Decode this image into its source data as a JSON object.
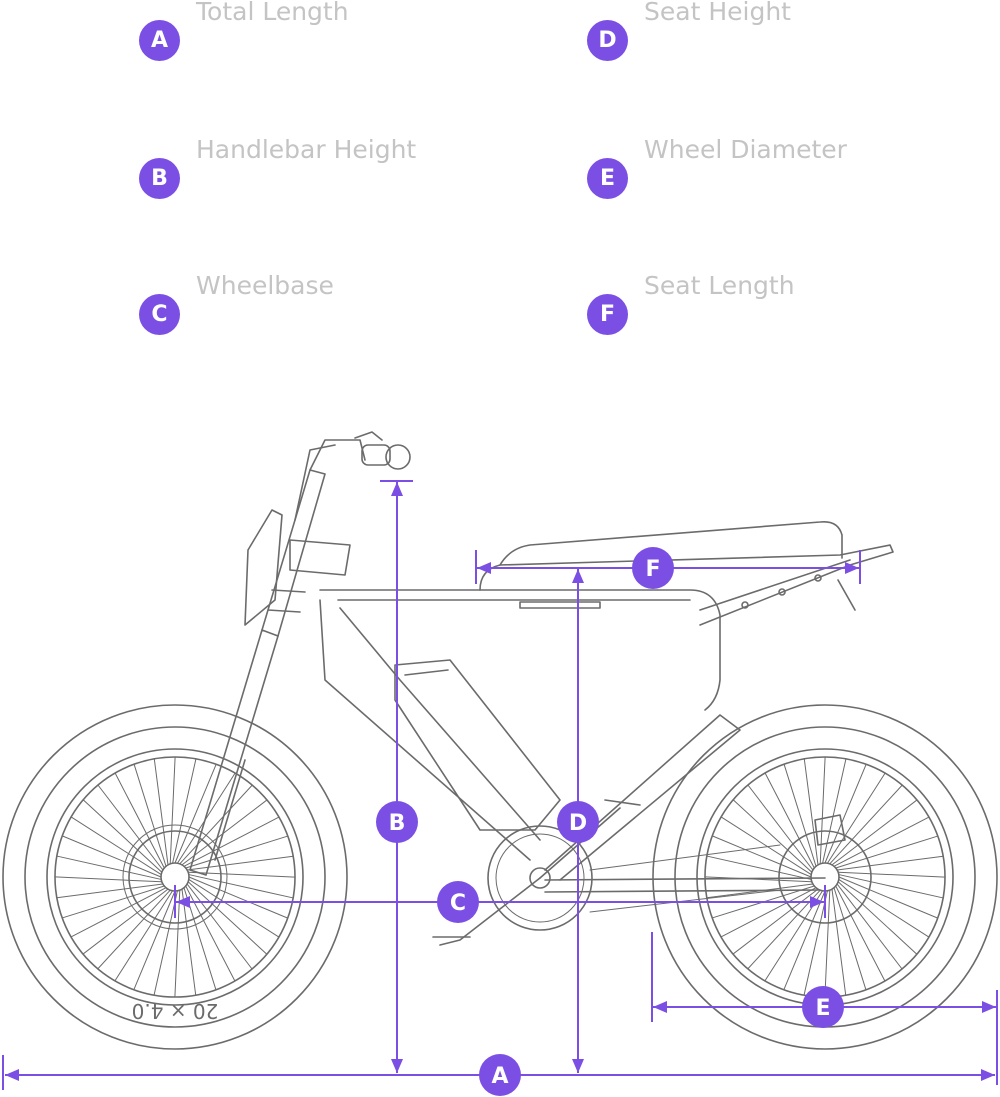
{
  "legend": [
    {
      "letter": "A",
      "label": "Total Length"
    },
    {
      "letter": "B",
      "label": "Handlebar Height"
    },
    {
      "letter": "C",
      "label": "Wheelbase"
    },
    {
      "letter": "D",
      "label": "Seat Height"
    },
    {
      "letter": "E",
      "label": "Wheel Diameter"
    },
    {
      "letter": "F",
      "label": "Seat Length"
    }
  ],
  "tire_text": "20 × 4.0",
  "colors": {
    "accent": "#7b4fe4",
    "label": "#c4c4c4",
    "drawing": "#6b6b6b"
  }
}
